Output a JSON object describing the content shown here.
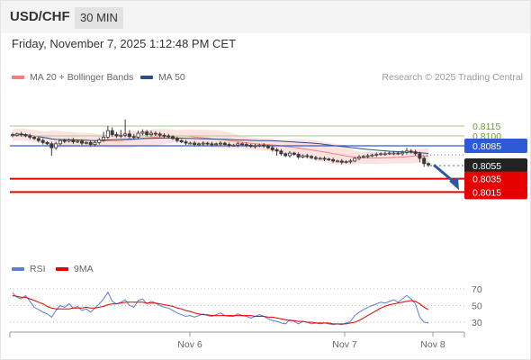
{
  "header": {
    "symbol": "USD/CHF",
    "timeframe": "30 MIN",
    "datetime": "Friday, November 7, 2025 1:12:48 PM CET",
    "credit": "Research © 2025 Trading Central"
  },
  "colors": {
    "candle": "#3a3a3a",
    "band_fill": "#fde2e2",
    "ma20": "#f08080",
    "ma50": "#2c4f8c",
    "resistance": "#b8d49a",
    "pivot": "#2d5bd6",
    "support": "#e60000",
    "current": "#222222",
    "rsi": "#5a7fd6",
    "rsi_ma": "#e60000",
    "arrow": "#2c5aa0"
  },
  "chart_data": [
    {
      "type": "candlestick",
      "legend": [
        {
          "name": "MA 20 + Bollinger Bands",
          "color": "#f08080"
        },
        {
          "name": "MA 50",
          "color": "#2c4f8c"
        }
      ],
      "y_range": [
        0.8005,
        0.8135
      ],
      "x_ticks": [
        "Nov 6",
        "Nov 7",
        "Nov 8"
      ],
      "levels": [
        {
          "value": 0.8115,
          "label": "0.8115",
          "kind": "resistance"
        },
        {
          "value": 0.81,
          "label": "0.8100",
          "kind": "resistance"
        },
        {
          "value": 0.8085,
          "label": "0.8085",
          "kind": "pivot"
        },
        {
          "value": 0.8055,
          "label": "0.8055",
          "kind": "current"
        },
        {
          "value": 0.8035,
          "label": "0.8035",
          "kind": "support"
        },
        {
          "value": 0.8015,
          "label": "0.8015",
          "kind": "support"
        }
      ],
      "forecast_arrow": {
        "from": 0.8056,
        "to": 0.8015
      },
      "close": [
        0.8101,
        0.8103,
        0.8102,
        0.81,
        0.8098,
        0.8096,
        0.8093,
        0.809,
        0.8088,
        0.8082,
        0.8088,
        0.8093,
        0.8092,
        0.8094,
        0.8091,
        0.8092,
        0.8089,
        0.809,
        0.8087,
        0.809,
        0.8094,
        0.8098,
        0.8108,
        0.8102,
        0.81,
        0.8101,
        0.8103,
        0.8099,
        0.8098,
        0.8104,
        0.8106,
        0.8102,
        0.8104,
        0.8103,
        0.8101,
        0.81,
        0.8099,
        0.8096,
        0.8093,
        0.8091,
        0.8089,
        0.8089,
        0.8087,
        0.8088,
        0.8089,
        0.8088,
        0.8087,
        0.8088,
        0.8089,
        0.8087,
        0.8086,
        0.8086,
        0.8088,
        0.8087,
        0.8086,
        0.8084,
        0.8085,
        0.8086,
        0.8085,
        0.8082,
        0.8079,
        0.8077,
        0.8073,
        0.807,
        0.8074,
        0.8072,
        0.8068,
        0.807,
        0.8069,
        0.8067,
        0.8066,
        0.8066,
        0.8065,
        0.8064,
        0.8062,
        0.8062,
        0.806,
        0.8061,
        0.8062,
        0.8066,
        0.8068,
        0.8069,
        0.807,
        0.8071,
        0.8072,
        0.8073,
        0.8073,
        0.8074,
        0.8074,
        0.8073,
        0.8075,
        0.8077,
        0.8076,
        0.8073,
        0.8066,
        0.8058,
        0.8056
      ],
      "high_offset": [
        0.0003,
        0.0002,
        0.0003,
        0.0002,
        0.0003,
        0.0002,
        0.0003,
        0.0003,
        0.0002,
        0.0003,
        0.0003,
        0.0002,
        0.0003,
        0.0002,
        0.0003,
        0.0002,
        0.0003,
        0.0002,
        0.0003,
        0.0003,
        0.0003,
        0.0008,
        0.0007,
        0.0005,
        0.0004,
        0.0008,
        0.0022,
        0.0006,
        0.0004,
        0.0004,
        0.0004,
        0.0003,
        0.0004,
        0.0003,
        0.0003,
        0.0003,
        0.0003,
        0.0002,
        0.0003,
        0.0002,
        0.0003,
        0.0002,
        0.0003,
        0.0002,
        0.0003,
        0.0002,
        0.0003,
        0.0002,
        0.0003,
        0.0002,
        0.0003,
        0.0002,
        0.0003,
        0.0002,
        0.0003,
        0.0002,
        0.0003,
        0.0002,
        0.0003,
        0.0002,
        0.0003,
        0.0003,
        0.0003,
        0.0002,
        0.0003,
        0.0002,
        0.0003,
        0.0002,
        0.0003,
        0.0002,
        0.0003,
        0.0002,
        0.0003,
        0.0002,
        0.0003,
        0.0002,
        0.0003,
        0.0002,
        0.0003,
        0.0002,
        0.0003,
        0.0002,
        0.0003,
        0.0002,
        0.0003,
        0.0002,
        0.0003,
        0.0002,
        0.0003,
        0.0002,
        0.0003,
        0.0005,
        0.0003,
        0.0003,
        0.0003,
        0.0003,
        0.0002
      ],
      "low_offset": [
        0.0003,
        0.0002,
        0.0003,
        0.0002,
        0.0003,
        0.0002,
        0.0003,
        0.0003,
        0.0002,
        0.0012,
        0.0003,
        0.0002,
        0.0003,
        0.0002,
        0.0003,
        0.0002,
        0.0003,
        0.0002,
        0.0003,
        0.0003,
        0.0003,
        0.0003,
        0.0003,
        0.0003,
        0.0003,
        0.0003,
        0.0003,
        0.0003,
        0.0003,
        0.0003,
        0.0003,
        0.0003,
        0.0003,
        0.0003,
        0.0003,
        0.0003,
        0.0003,
        0.0002,
        0.0003,
        0.0002,
        0.0003,
        0.0002,
        0.0003,
        0.0002,
        0.0003,
        0.0002,
        0.0003,
        0.0002,
        0.0003,
        0.0002,
        0.0003,
        0.0002,
        0.0003,
        0.0002,
        0.0003,
        0.0002,
        0.0003,
        0.0002,
        0.0003,
        0.0002,
        0.0003,
        0.0007,
        0.0003,
        0.0002,
        0.0003,
        0.0002,
        0.0003,
        0.0002,
        0.0003,
        0.0002,
        0.0003,
        0.0002,
        0.0003,
        0.0002,
        0.0003,
        0.0002,
        0.0003,
        0.0002,
        0.0003,
        0.0002,
        0.0003,
        0.0002,
        0.0003,
        0.0002,
        0.0003,
        0.0002,
        0.0003,
        0.0002,
        0.0003,
        0.0002,
        0.0003,
        0.0003,
        0.0003,
        0.0003,
        0.0006,
        0.0005,
        0.0003
      ]
    },
    {
      "type": "line",
      "legend": [
        {
          "name": "RSI",
          "color": "#5a7fd6"
        },
        {
          "name": "9MA",
          "color": "#e60000"
        }
      ],
      "y_range": [
        30,
        70
      ],
      "y_ticks": [
        70,
        50,
        30
      ],
      "rsi": [
        65,
        60,
        58,
        62,
        55,
        48,
        45,
        42,
        40,
        36,
        44,
        50,
        48,
        52,
        47,
        49,
        44,
        46,
        42,
        47,
        52,
        58,
        66,
        55,
        52,
        54,
        57,
        50,
        48,
        56,
        58,
        52,
        55,
        53,
        50,
        48,
        47,
        44,
        41,
        39,
        37,
        38,
        36,
        38,
        40,
        38,
        37,
        39,
        41,
        38,
        37,
        37,
        40,
        38,
        37,
        35,
        37,
        39,
        37,
        34,
        32,
        31,
        29,
        28,
        33,
        31,
        28,
        31,
        30,
        28,
        29,
        28,
        29,
        28,
        27,
        28,
        27,
        29,
        31,
        38,
        42,
        45,
        48,
        50,
        52,
        54,
        53,
        55,
        57,
        54,
        58,
        62,
        58,
        52,
        36,
        30,
        29
      ],
      "ma9": [
        62,
        61,
        60,
        60,
        58,
        56,
        54,
        52,
        49,
        47,
        46,
        46,
        46,
        46,
        47,
        47,
        47,
        48,
        47,
        47,
        48,
        49,
        51,
        52,
        52,
        53,
        54,
        54,
        54,
        54,
        54,
        53,
        53,
        53,
        52,
        51,
        50,
        49,
        47,
        46,
        44,
        43,
        41,
        40,
        39,
        39,
        38,
        38,
        38,
        38,
        38,
        38,
        38,
        38,
        38,
        38,
        37,
        37,
        37,
        36,
        36,
        35,
        34,
        33,
        32,
        32,
        31,
        31,
        30,
        30,
        29,
        29,
        29,
        29,
        28,
        28,
        28,
        28,
        29,
        30,
        32,
        35,
        38,
        41,
        44,
        47,
        49,
        51,
        52,
        53,
        54,
        55,
        56,
        55,
        52,
        48,
        45
      ]
    }
  ]
}
